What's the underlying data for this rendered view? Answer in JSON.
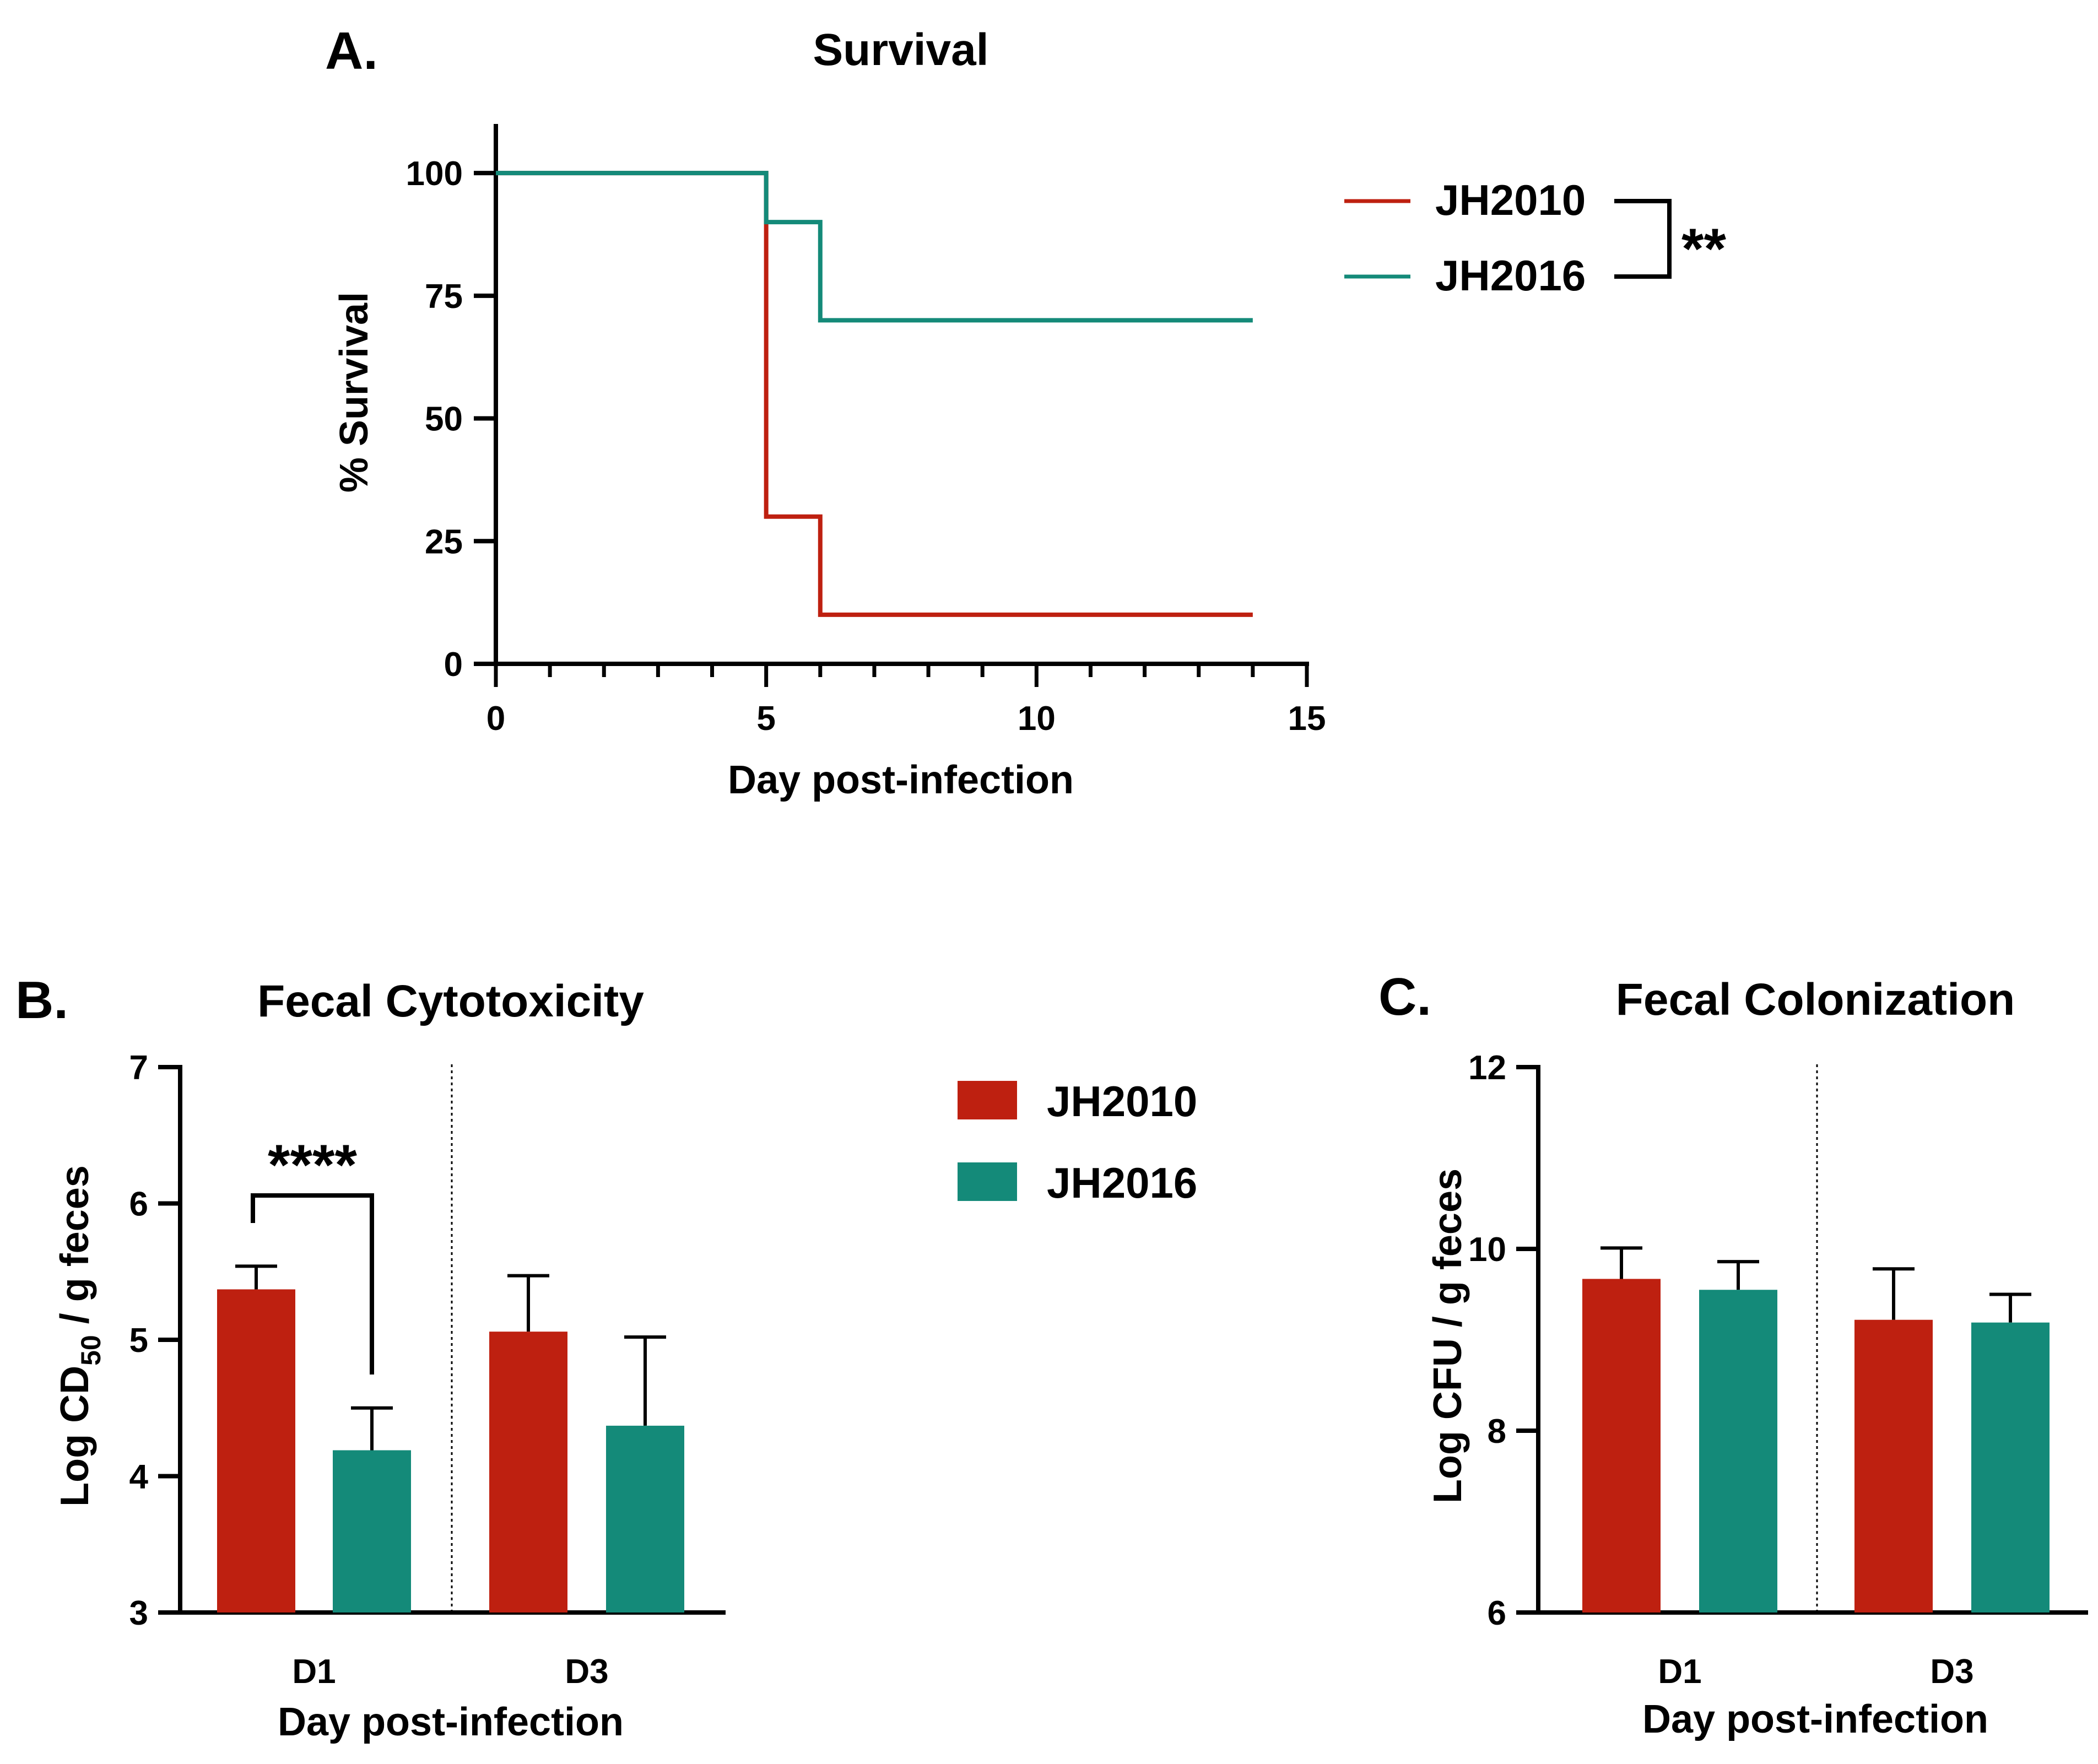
{
  "colors": {
    "JH2010": "#be2010",
    "JH2016": "#148a79",
    "axis": "#000000"
  },
  "chart_data": [
    {
      "panel": "A.",
      "type": "line",
      "subtype": "kaplan-meier",
      "title": "Survival",
      "xlabel": "Day post-infection",
      "ylabel": "% Survival",
      "xlim": [
        0,
        15
      ],
      "ylim": [
        0,
        110
      ],
      "xticks": [
        0,
        5,
        10,
        15
      ],
      "yticks": [
        0,
        25,
        50,
        75,
        100
      ],
      "series": [
        {
          "name": "JH2010",
          "x": [
            0,
            5,
            5,
            6,
            6,
            14
          ],
          "y": [
            100,
            100,
            30,
            30,
            10,
            10
          ]
        },
        {
          "name": "JH2016",
          "x": [
            0,
            5,
            5,
            6,
            6,
            14
          ],
          "y": [
            100,
            100,
            90,
            90,
            70,
            70
          ]
        }
      ],
      "legend": [
        "JH2010",
        "JH2016"
      ],
      "legend_position": "right",
      "significance": "**"
    },
    {
      "panel": "B.",
      "type": "bar",
      "title": "Fecal Cytotoxicity",
      "xlabel": "Day post-infection",
      "ylabel": "Log CD50 / g feces",
      "ylabel_parts": [
        "Log CD",
        "50",
        " / g feces"
      ],
      "categories": [
        "D1",
        "D3"
      ],
      "ylim": [
        3,
        7
      ],
      "yticks": [
        3,
        4,
        5,
        6,
        7
      ],
      "series": [
        {
          "name": "JH2010",
          "values": [
            5.37,
            5.06
          ],
          "errors": [
            0.17,
            0.41
          ]
        },
        {
          "name": "JH2016",
          "values": [
            4.19,
            4.37
          ],
          "errors": [
            0.31,
            0.65
          ]
        }
      ],
      "legend": [
        "JH2010",
        "JH2016"
      ],
      "significance": "****"
    },
    {
      "panel": "C.",
      "type": "bar",
      "title": "Fecal Colonization",
      "xlabel": "Day post-infection",
      "ylabel": "Log CFU / g feces",
      "categories": [
        "D1",
        "D3"
      ],
      "ylim": [
        6,
        12
      ],
      "yticks": [
        6,
        8,
        10,
        12
      ],
      "series": [
        {
          "name": "JH2010",
          "values": [
            9.67,
            9.22
          ],
          "errors": [
            0.34,
            0.56
          ]
        },
        {
          "name": "JH2016",
          "values": [
            9.55,
            9.19
          ],
          "errors": [
            0.31,
            0.31
          ]
        }
      ]
    }
  ]
}
